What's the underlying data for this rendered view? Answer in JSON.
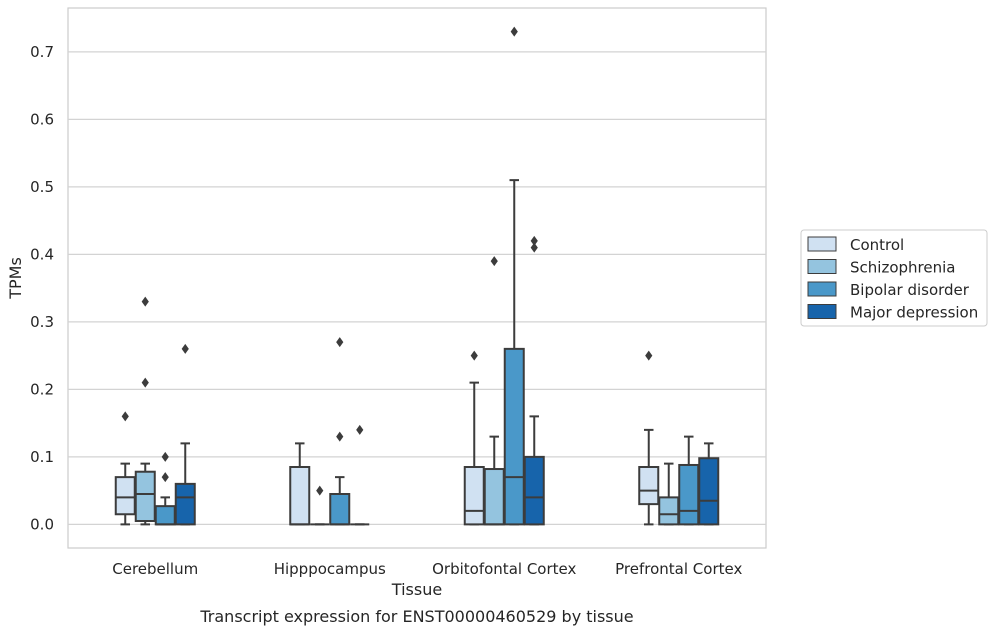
{
  "caption": "Transcript expression for ENST00000460529 by tissue",
  "chart_data": {
    "type": "box",
    "xlabel": "Tissue",
    "ylabel": "TPMs",
    "ylim": [
      -0.035,
      0.765
    ],
    "yticks": [
      0.0,
      0.1,
      0.2,
      0.3,
      0.4,
      0.5,
      0.6,
      0.7
    ],
    "ytick_labels": [
      "0.0",
      "0.1",
      "0.2",
      "0.3",
      "0.4",
      "0.5",
      "0.6",
      "0.7"
    ],
    "grid": "horizontal",
    "legend_position": "right",
    "categories": [
      "Cerebellum",
      "Hipppocampus",
      "Orbitofontal Cortex",
      "Prefrontal Cortex"
    ],
    "series": [
      {
        "name": "Control",
        "color": "#d0e1f2",
        "boxes": [
          {
            "whislo": 0.0,
            "q1": 0.015,
            "med": 0.04,
            "q3": 0.07,
            "whishi": 0.09,
            "fliers": [
              0.16
            ]
          },
          {
            "whislo": 0.0,
            "q1": 0.0,
            "med": 0.0,
            "q3": 0.085,
            "whishi": 0.12,
            "fliers": []
          },
          {
            "whislo": 0.0,
            "q1": 0.0,
            "med": 0.02,
            "q3": 0.085,
            "whishi": 0.21,
            "fliers": [
              0.25
            ]
          },
          {
            "whislo": 0.0,
            "q1": 0.03,
            "med": 0.05,
            "q3": 0.085,
            "whishi": 0.14,
            "fliers": [
              0.25
            ]
          }
        ]
      },
      {
        "name": "Schizophrenia",
        "color": "#94c4df",
        "boxes": [
          {
            "whislo": 0.0,
            "q1": 0.005,
            "med": 0.045,
            "q3": 0.078,
            "whishi": 0.09,
            "fliers": [
              0.21,
              0.33
            ]
          },
          {
            "whislo": 0.0,
            "q1": 0.0,
            "med": 0.0,
            "q3": 0.0,
            "whishi": 0.0,
            "fliers": [
              0.05
            ]
          },
          {
            "whislo": 0.0,
            "q1": 0.0,
            "med": 0.0,
            "q3": 0.082,
            "whishi": 0.13,
            "fliers": [
              0.39
            ]
          },
          {
            "whislo": 0.0,
            "q1": 0.0,
            "med": 0.015,
            "q3": 0.04,
            "whishi": 0.09,
            "fliers": []
          }
        ]
      },
      {
        "name": "Bipolar disorder",
        "color": "#4a98c9",
        "boxes": [
          {
            "whislo": 0.0,
            "q1": 0.0,
            "med": 0.0,
            "q3": 0.027,
            "whishi": 0.04,
            "fliers": [
              0.07,
              0.1
            ]
          },
          {
            "whislo": 0.0,
            "q1": 0.0,
            "med": 0.0,
            "q3": 0.045,
            "whishi": 0.07,
            "fliers": [
              0.13,
              0.27
            ]
          },
          {
            "whislo": 0.0,
            "q1": 0.0,
            "med": 0.07,
            "q3": 0.26,
            "whishi": 0.51,
            "fliers": [
              0.73
            ]
          },
          {
            "whislo": 0.0,
            "q1": 0.0,
            "med": 0.02,
            "q3": 0.088,
            "whishi": 0.13,
            "fliers": []
          }
        ]
      },
      {
        "name": "Major depression",
        "color": "#1764ab",
        "boxes": [
          {
            "whislo": 0.0,
            "q1": 0.0,
            "med": 0.04,
            "q3": 0.06,
            "whishi": 0.12,
            "fliers": [
              0.26
            ]
          },
          {
            "whislo": 0.0,
            "q1": 0.0,
            "med": 0.0,
            "q3": 0.0,
            "whishi": 0.0,
            "fliers": [
              0.14
            ]
          },
          {
            "whislo": 0.0,
            "q1": 0.0,
            "med": 0.04,
            "q3": 0.1,
            "whishi": 0.16,
            "fliers": [
              0.41,
              0.42
            ]
          },
          {
            "whislo": 0.0,
            "q1": 0.0,
            "med": 0.035,
            "q3": 0.098,
            "whishi": 0.12,
            "fliers": []
          }
        ]
      }
    ]
  }
}
